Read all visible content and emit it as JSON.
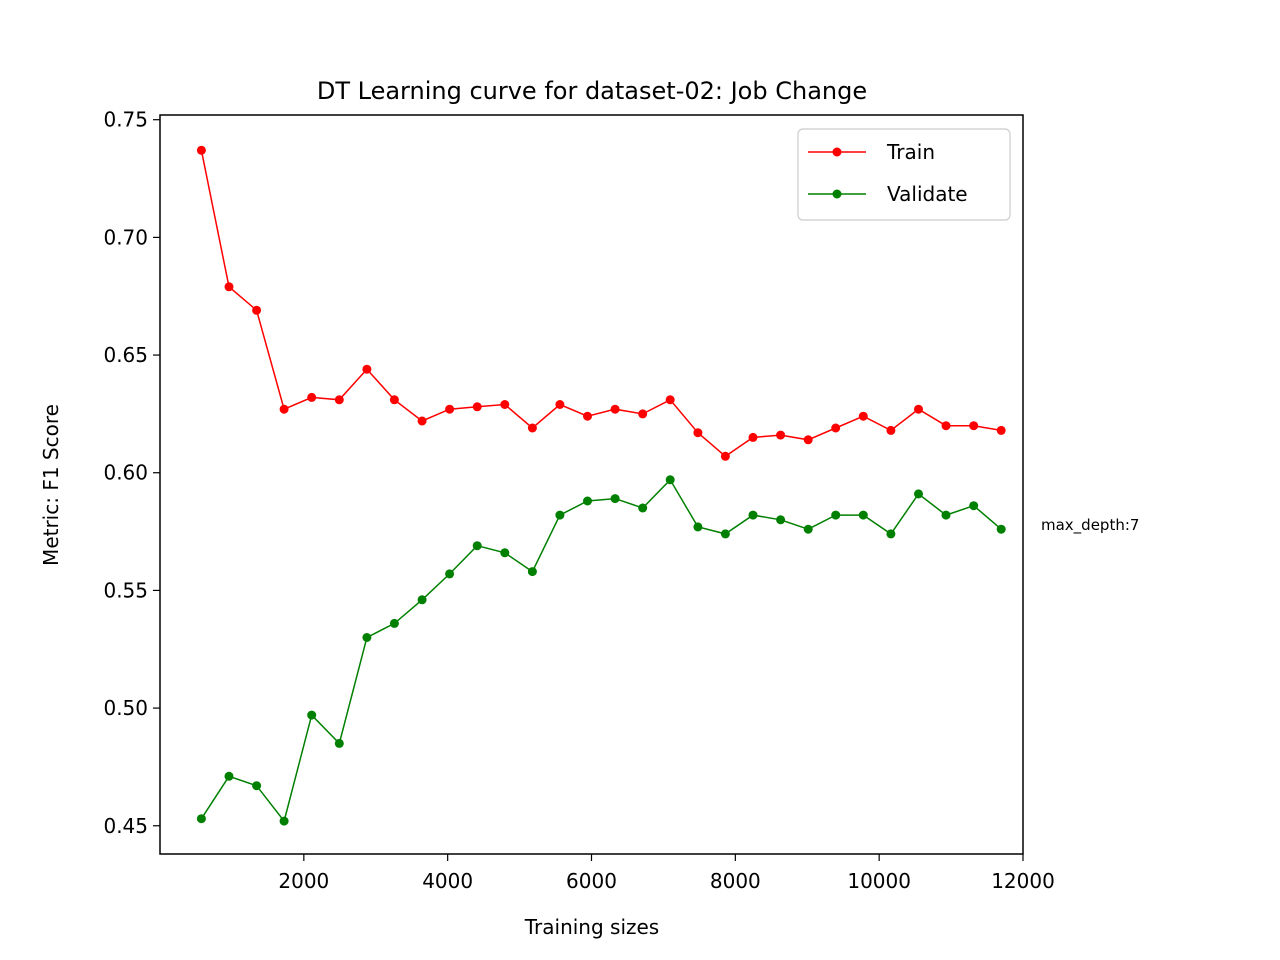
{
  "chart_data": {
    "type": "line",
    "title": "DT Learning curve for dataset-02: Job Change",
    "xlabel": "Training sizes",
    "ylabel": "Metric: F1 Score",
    "xlim": [
      0,
      12000
    ],
    "ylim": [
      0.438,
      0.752
    ],
    "xticks": [
      2000,
      4000,
      6000,
      8000,
      10000,
      12000
    ],
    "xtick_labels": [
      "2000",
      "4000",
      "6000",
      "8000",
      "10000",
      "12000"
    ],
    "yticks": [
      0.45,
      0.5,
      0.55,
      0.6,
      0.65,
      0.7,
      0.75
    ],
    "ytick_labels": [
      "0.45",
      "0.50",
      "0.55",
      "0.60",
      "0.65",
      "0.70",
      "0.75"
    ],
    "grid": false,
    "legend_position": "top-right",
    "annotation": "max_depth:7",
    "x": [
      576,
      959,
      1343,
      1726,
      2110,
      2493,
      2877,
      3260,
      3644,
      4027,
      4411,
      4794,
      5178,
      5561,
      5945,
      6328,
      6712,
      7095,
      7479,
      7862,
      8246,
      8629,
      9013,
      9396,
      9780,
      10163,
      10547,
      10930,
      11314,
      11697
    ],
    "series": [
      {
        "name": "Train",
        "color": "#ff0000",
        "values": [
          0.737,
          0.679,
          0.669,
          0.627,
          0.632,
          0.631,
          0.644,
          0.631,
          0.622,
          0.627,
          0.628,
          0.629,
          0.619,
          0.629,
          0.624,
          0.627,
          0.625,
          0.631,
          0.617,
          0.607,
          0.615,
          0.616,
          0.614,
          0.619,
          0.624,
          0.618,
          0.627,
          0.62,
          0.62,
          0.618
        ]
      },
      {
        "name": "Validate",
        "color": "#008000",
        "values": [
          0.453,
          0.471,
          0.467,
          0.452,
          0.497,
          0.485,
          0.53,
          0.536,
          0.546,
          0.557,
          0.569,
          0.566,
          0.558,
          0.582,
          0.588,
          0.589,
          0.585,
          0.597,
          0.577,
          0.574,
          0.582,
          0.58,
          0.576,
          0.582,
          0.582,
          0.574,
          0.591,
          0.582,
          0.586,
          0.576
        ]
      }
    ]
  }
}
